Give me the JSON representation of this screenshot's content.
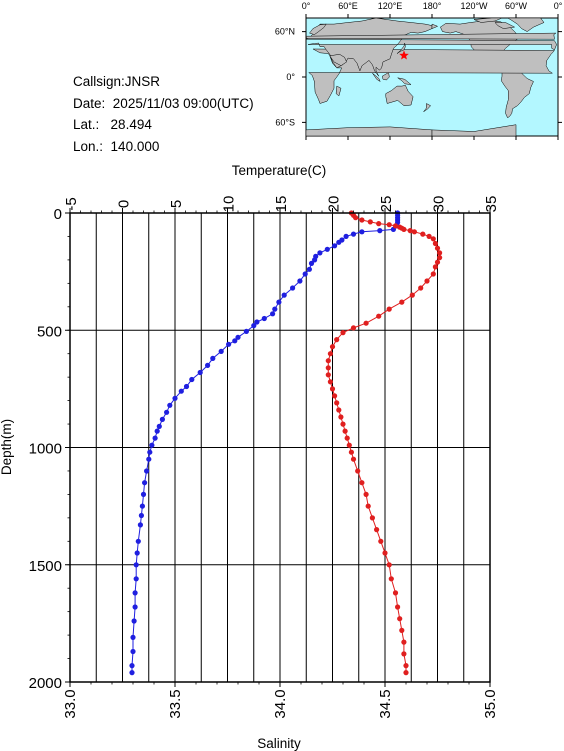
{
  "station": {
    "callsign_label": "Callsign:",
    "callsign": "JNSR",
    "date_label": "Date:",
    "date": "2025/11/03 09:00(UTC)",
    "lat_label": "Lat.:",
    "lat": "28.494",
    "lon_label": "Lon.:",
    "lon": "140.000"
  },
  "map": {
    "lon_labels": [
      "0°",
      "60°E",
      "120°E",
      "180°",
      "120°W",
      "60°W",
      "0°"
    ],
    "lat_labels": [
      "60°N",
      "0°",
      "60°S"
    ],
    "ocean_color": "#b3f7ff",
    "land_color": "#bfbfbf",
    "marker": {
      "lat": 28.494,
      "lon": 140.0,
      "color": "#ff0000"
    }
  },
  "chart_data": {
    "type": "scatter",
    "ylabel": "Depth(m)",
    "ylim": [
      2000,
      0
    ],
    "y_ticks": [
      "0",
      "500",
      "1000",
      "1500",
      "2000"
    ],
    "grid": true,
    "top_axis": {
      "label": "Temperature(C)",
      "range": [
        -5,
        35
      ],
      "ticks": [
        "-5",
        "0",
        "5",
        "10",
        "15",
        "20",
        "25",
        "30",
        "35"
      ]
    },
    "bottom_axis": {
      "label": "Salinity",
      "range": [
        33.0,
        35.0
      ],
      "ticks": [
        "33.0",
        "33.5",
        "34.0",
        "34.5",
        "35.0"
      ]
    },
    "series": [
      {
        "axis": "top",
        "color": "#1f1fe0",
        "points": [
          [
            26.2,
            0
          ],
          [
            26.2,
            10
          ],
          [
            26.2,
            20
          ],
          [
            26.2,
            30
          ],
          [
            26.2,
            40
          ],
          [
            26.1,
            55
          ],
          [
            25.8,
            70
          ],
          [
            24.5,
            75
          ],
          [
            22.8,
            80
          ],
          [
            22.0,
            90
          ],
          [
            21.3,
            100
          ],
          [
            20.9,
            115
          ],
          [
            20.6,
            125
          ],
          [
            20.2,
            140
          ],
          [
            19.5,
            155
          ],
          [
            18.8,
            170
          ],
          [
            18.4,
            185
          ],
          [
            18.3,
            200
          ],
          [
            18.0,
            215
          ],
          [
            17.8,
            240
          ],
          [
            17.4,
            260
          ],
          [
            16.9,
            290
          ],
          [
            16.2,
            320
          ],
          [
            15.4,
            350
          ],
          [
            14.9,
            380
          ],
          [
            14.5,
            410
          ],
          [
            14.3,
            430
          ],
          [
            13.5,
            450
          ],
          [
            12.8,
            465
          ],
          [
            12.5,
            480
          ],
          [
            11.8,
            505
          ],
          [
            11.0,
            530
          ],
          [
            10.7,
            545
          ],
          [
            10.1,
            560
          ],
          [
            9.4,
            590
          ],
          [
            8.6,
            620
          ],
          [
            8.1,
            650
          ],
          [
            7.4,
            680
          ],
          [
            6.6,
            710
          ],
          [
            6.1,
            740
          ],
          [
            5.6,
            760
          ],
          [
            5.0,
            790
          ],
          [
            4.5,
            820
          ],
          [
            4.2,
            850
          ],
          [
            3.8,
            880
          ],
          [
            3.5,
            910
          ],
          [
            3.3,
            930
          ],
          [
            3.1,
            960
          ],
          [
            2.8,
            990
          ],
          [
            2.6,
            1020
          ],
          [
            2.5,
            1050
          ],
          [
            2.3,
            1100
          ],
          [
            2.1,
            1150
          ],
          [
            2.0,
            1200
          ],
          [
            1.9,
            1250
          ],
          [
            1.8,
            1290
          ],
          [
            1.7,
            1330
          ],
          [
            1.5,
            1400
          ],
          [
            1.4,
            1450
          ],
          [
            1.3,
            1500
          ],
          [
            1.3,
            1560
          ],
          [
            1.2,
            1620
          ],
          [
            1.2,
            1680
          ],
          [
            1.1,
            1740
          ],
          [
            1.0,
            1810
          ],
          [
            1.0,
            1870
          ],
          [
            0.9,
            1930
          ],
          [
            0.9,
            1960
          ]
        ]
      },
      {
        "axis": "bottom",
        "color": "#e01f1f",
        "points": [
          [
            34.34,
            0
          ],
          [
            34.35,
            10
          ],
          [
            34.36,
            20
          ],
          [
            34.39,
            30
          ],
          [
            34.43,
            38
          ],
          [
            34.47,
            45
          ],
          [
            34.52,
            50
          ],
          [
            34.55,
            55
          ],
          [
            34.57,
            60
          ],
          [
            34.58,
            65
          ],
          [
            34.59,
            70
          ],
          [
            34.62,
            75
          ],
          [
            34.64,
            80
          ],
          [
            34.68,
            90
          ],
          [
            34.71,
            100
          ],
          [
            34.73,
            110
          ],
          [
            34.74,
            130
          ],
          [
            34.75,
            150
          ],
          [
            34.76,
            170
          ],
          [
            34.76,
            190
          ],
          [
            34.75,
            210
          ],
          [
            34.74,
            230
          ],
          [
            34.73,
            260
          ],
          [
            34.7,
            290
          ],
          [
            34.67,
            320
          ],
          [
            34.63,
            350
          ],
          [
            34.58,
            380
          ],
          [
            34.52,
            410
          ],
          [
            34.47,
            440
          ],
          [
            34.41,
            470
          ],
          [
            34.35,
            490
          ],
          [
            34.3,
            510
          ],
          [
            34.27,
            540
          ],
          [
            34.25,
            570
          ],
          [
            34.24,
            600
          ],
          [
            34.23,
            630
          ],
          [
            34.23,
            660
          ],
          [
            34.23,
            690
          ],
          [
            34.24,
            720
          ],
          [
            34.25,
            750
          ],
          [
            34.26,
            780
          ],
          [
            34.27,
            810
          ],
          [
            34.28,
            840
          ],
          [
            34.29,
            870
          ],
          [
            34.3,
            900
          ],
          [
            34.31,
            930
          ],
          [
            34.32,
            960
          ],
          [
            34.33,
            990
          ],
          [
            34.34,
            1020
          ],
          [
            34.35,
            1050
          ],
          [
            34.37,
            1100
          ],
          [
            34.39,
            1150
          ],
          [
            34.41,
            1200
          ],
          [
            34.42,
            1250
          ],
          [
            34.44,
            1300
          ],
          [
            34.46,
            1350
          ],
          [
            34.48,
            1400
          ],
          [
            34.5,
            1450
          ],
          [
            34.52,
            1500
          ],
          [
            34.53,
            1560
          ],
          [
            34.55,
            1620
          ],
          [
            34.56,
            1680
          ],
          [
            34.57,
            1730
          ],
          [
            34.58,
            1780
          ],
          [
            34.59,
            1830
          ],
          [
            34.59,
            1880
          ],
          [
            34.6,
            1930
          ],
          [
            34.6,
            1960
          ]
        ]
      }
    ]
  }
}
